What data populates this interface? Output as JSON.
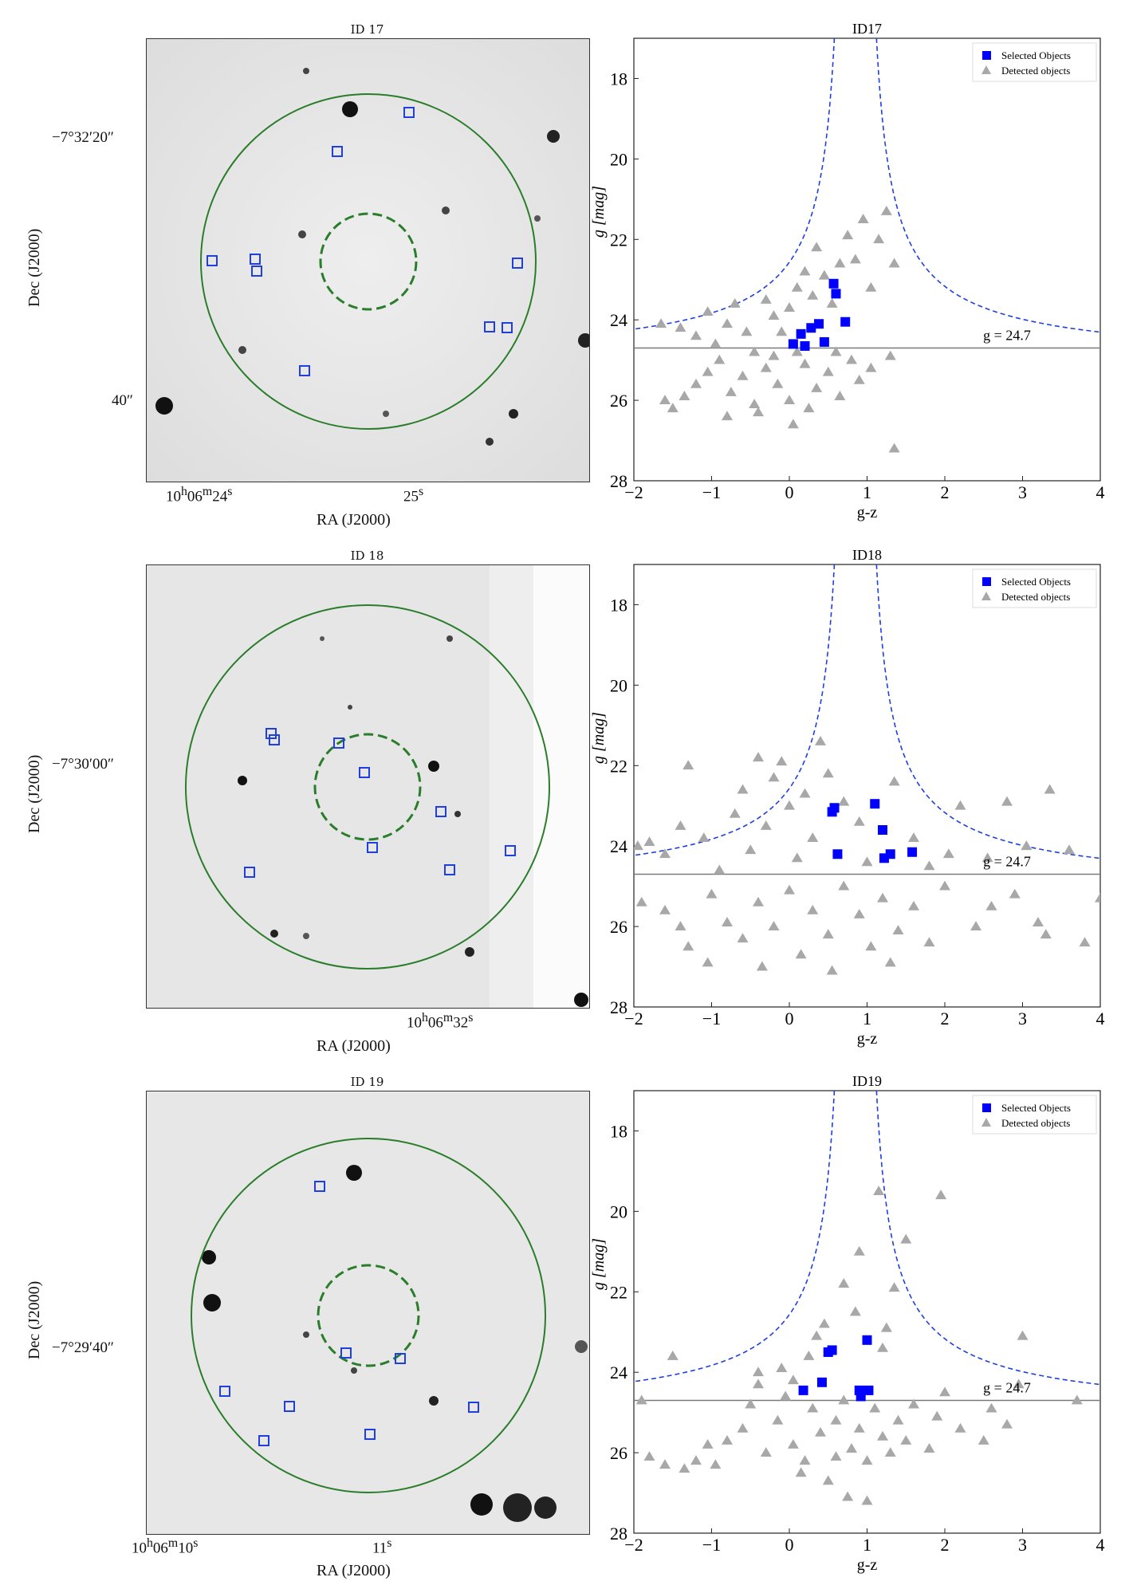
{
  "colors": {
    "circle": "#2a7d2a",
    "selected": "#0000ff",
    "detected": "#a8a8a8",
    "curve": "#1f3fe0",
    "line": "#7a7a7a"
  },
  "images": [
    {
      "title": "ID 17",
      "dec_label": "Dec (J2000)",
      "ra_label": "RA (J2000)",
      "dec_ticks": [
        "−7°32′20″",
        "40″"
      ],
      "ra_ticks": [
        "10h06m24s",
        "25s"
      ],
      "ra_ticks_html": [
        "10<sup>h</sup>06<sup>m</sup>24<sup>s</sup>",
        "25<sup>s</sup>"
      ]
    },
    {
      "title": "ID 18",
      "dec_label": "Dec (J2000)",
      "ra_label": "RA (J2000)",
      "dec_ticks": [
        "−7°30′00″"
      ],
      "ra_ticks": [
        "10h06m32s"
      ]
    },
    {
      "title": "ID 19",
      "dec_label": "Dec (J2000)",
      "ra_label": "RA (J2000)",
      "dec_ticks": [
        "−7°29′40″"
      ],
      "ra_ticks": [
        "10h06m10s",
        "11s"
      ]
    }
  ],
  "chart_data": [
    {
      "type": "scatter",
      "title": "ID17",
      "xlabel": "g-z",
      "ylabel": "g [mag]",
      "xlim": [
        -2,
        4
      ],
      "ylim": [
        28,
        17
      ],
      "xticks": [
        -2,
        -1,
        0,
        1,
        2,
        3,
        4
      ],
      "yticks": [
        18,
        20,
        22,
        24,
        26,
        28
      ],
      "legend": [
        "Selected Objects",
        "Detected objects"
      ],
      "legend_position": "top-right",
      "threshold_label": "g = 24.7",
      "threshold": 24.7,
      "selected": [
        [
          0.05,
          24.6
        ],
        [
          0.2,
          24.65
        ],
        [
          0.15,
          24.35
        ],
        [
          0.28,
          24.2
        ],
        [
          0.38,
          24.1
        ],
        [
          0.45,
          24.55
        ],
        [
          0.57,
          23.1
        ],
        [
          0.6,
          23.35
        ],
        [
          0.72,
          24.05
        ]
      ],
      "detected": [
        [
          -1.65,
          24.1
        ],
        [
          -1.4,
          24.2
        ],
        [
          -1.2,
          24.4
        ],
        [
          -1.05,
          23.8
        ],
        [
          -0.95,
          24.6
        ],
        [
          -0.8,
          24.1
        ],
        [
          -0.7,
          23.6
        ],
        [
          -0.55,
          24.3
        ],
        [
          -0.45,
          24.8
        ],
        [
          -0.3,
          23.5
        ],
        [
          -0.2,
          23.9
        ],
        [
          -0.1,
          24.3
        ],
        [
          0.0,
          23.7
        ],
        [
          0.1,
          23.2
        ],
        [
          0.2,
          22.8
        ],
        [
          0.3,
          23.4
        ],
        [
          0.35,
          22.2
        ],
        [
          0.45,
          22.9
        ],
        [
          0.55,
          23.6
        ],
        [
          0.65,
          22.6
        ],
        [
          0.75,
          21.9
        ],
        [
          0.85,
          22.5
        ],
        [
          0.95,
          21.5
        ],
        [
          1.05,
          23.2
        ],
        [
          1.15,
          22.0
        ],
        [
          1.25,
          21.3
        ],
        [
          1.35,
          22.6
        ],
        [
          -1.5,
          26.2
        ],
        [
          -1.35,
          25.9
        ],
        [
          -1.2,
          25.6
        ],
        [
          -1.05,
          25.3
        ],
        [
          -0.9,
          25.0
        ],
        [
          -0.75,
          25.8
        ],
        [
          -0.6,
          25.4
        ],
        [
          -0.45,
          26.1
        ],
        [
          -0.3,
          25.2
        ],
        [
          -0.15,
          25.6
        ],
        [
          0.0,
          26.0
        ],
        [
          0.05,
          26.6
        ],
        [
          0.2,
          25.1
        ],
        [
          0.35,
          25.7
        ],
        [
          0.5,
          25.3
        ],
        [
          0.65,
          25.9
        ],
        [
          0.8,
          25.0
        ],
        [
          0.9,
          25.5
        ],
        [
          1.05,
          25.2
        ],
        [
          1.3,
          24.9
        ],
        [
          1.35,
          27.2
        ],
        [
          -0.8,
          26.4
        ],
        [
          -0.4,
          26.3
        ],
        [
          0.25,
          26.2
        ],
        [
          -1.6,
          26.0
        ],
        [
          0.6,
          24.8
        ],
        [
          0.1,
          24.8
        ],
        [
          -0.2,
          24.9
        ]
      ]
    },
    {
      "type": "scatter",
      "title": "ID18",
      "xlabel": "g-z",
      "ylabel": "g [mag]",
      "xlim": [
        -2,
        4
      ],
      "ylim": [
        28,
        17
      ],
      "xticks": [
        -2,
        -1,
        0,
        1,
        2,
        3,
        4
      ],
      "yticks": [
        18,
        20,
        22,
        24,
        26,
        28
      ],
      "legend": [
        "Selected Objects",
        "Detected objects"
      ],
      "legend_position": "top-right",
      "threshold_label": "g = 24.7",
      "threshold": 24.7,
      "selected": [
        [
          0.55,
          23.15
        ],
        [
          0.58,
          23.05
        ],
        [
          0.62,
          24.2
        ],
        [
          1.1,
          22.95
        ],
        [
          1.2,
          23.6
        ],
        [
          1.22,
          24.3
        ],
        [
          1.3,
          24.2
        ],
        [
          1.58,
          24.15
        ]
      ],
      "detected": [
        [
          -1.95,
          24.0
        ],
        [
          -1.8,
          23.9
        ],
        [
          -1.6,
          24.2
        ],
        [
          -1.4,
          23.5
        ],
        [
          -1.3,
          22.0
        ],
        [
          -1.1,
          23.8
        ],
        [
          -0.9,
          24.6
        ],
        [
          -0.7,
          23.2
        ],
        [
          -0.6,
          22.6
        ],
        [
          -0.5,
          24.1
        ],
        [
          -0.4,
          21.8
        ],
        [
          -0.3,
          23.5
        ],
        [
          -0.2,
          22.3
        ],
        [
          -0.1,
          21.9
        ],
        [
          0.0,
          23.0
        ],
        [
          0.1,
          24.3
        ],
        [
          0.2,
          22.7
        ],
        [
          0.3,
          23.8
        ],
        [
          0.4,
          21.4
        ],
        [
          0.5,
          22.2
        ],
        [
          0.7,
          22.9
        ],
        [
          0.9,
          23.4
        ],
        [
          1.0,
          24.4
        ],
        [
          1.35,
          22.4
        ],
        [
          1.6,
          23.8
        ],
        [
          1.8,
          24.5
        ],
        [
          2.05,
          24.2
        ],
        [
          2.2,
          23.0
        ],
        [
          2.55,
          24.3
        ],
        [
          2.8,
          22.9
        ],
        [
          3.05,
          24.0
        ],
        [
          3.35,
          22.6
        ],
        [
          3.6,
          24.1
        ],
        [
          -1.9,
          25.4
        ],
        [
          -1.6,
          25.6
        ],
        [
          -1.4,
          26.0
        ],
        [
          -1.3,
          26.5
        ],
        [
          -1.0,
          25.2
        ],
        [
          -0.8,
          25.9
        ],
        [
          -0.6,
          26.3
        ],
        [
          -0.4,
          25.4
        ],
        [
          -0.2,
          26.0
        ],
        [
          0.0,
          25.1
        ],
        [
          0.15,
          26.7
        ],
        [
          0.3,
          25.6
        ],
        [
          0.5,
          26.2
        ],
        [
          0.7,
          25.0
        ],
        [
          0.9,
          25.7
        ],
        [
          1.05,
          26.5
        ],
        [
          1.2,
          25.3
        ],
        [
          1.4,
          26.1
        ],
        [
          1.6,
          25.5
        ],
        [
          1.8,
          26.4
        ],
        [
          2.0,
          25.0
        ],
        [
          2.4,
          26.0
        ],
        [
          2.6,
          25.5
        ],
        [
          2.9,
          25.2
        ],
        [
          3.2,
          25.9
        ],
        [
          3.3,
          26.2
        ],
        [
          3.8,
          26.4
        ],
        [
          4.0,
          25.3
        ],
        [
          -1.05,
          26.9
        ],
        [
          -0.35,
          27.0
        ],
        [
          0.55,
          27.1
        ],
        [
          1.3,
          26.9
        ]
      ]
    },
    {
      "type": "scatter",
      "title": "ID19",
      "xlabel": "g-z",
      "ylabel": "g [mag]",
      "xlim": [
        -2,
        4
      ],
      "ylim": [
        28,
        17
      ],
      "xticks": [
        -2,
        -1,
        0,
        1,
        2,
        3,
        4
      ],
      "yticks": [
        18,
        20,
        22,
        24,
        26,
        28
      ],
      "legend": [
        "Selected Objects",
        "Detected objects"
      ],
      "legend_position": "top-right",
      "threshold_label": "g = 24.7",
      "threshold": 24.7,
      "selected": [
        [
          0.18,
          24.45
        ],
        [
          0.42,
          24.25
        ],
        [
          0.5,
          23.5
        ],
        [
          0.55,
          23.45
        ],
        [
          0.9,
          24.45
        ],
        [
          0.92,
          24.6
        ],
        [
          1.0,
          23.2
        ],
        [
          1.02,
          24.45
        ]
      ],
      "detected": [
        [
          -1.9,
          24.7
        ],
        [
          -1.8,
          26.1
        ],
        [
          -1.6,
          26.3
        ],
        [
          -1.5,
          23.6
        ],
        [
          -1.35,
          26.4
        ],
        [
          -1.2,
          26.2
        ],
        [
          -1.05,
          25.8
        ],
        [
          -0.95,
          26.3
        ],
        [
          -0.8,
          25.7
        ],
        [
          -0.6,
          25.4
        ],
        [
          -0.5,
          24.8
        ],
        [
          -0.4,
          24.3
        ],
        [
          -0.3,
          26.0
        ],
        [
          -0.15,
          25.2
        ],
        [
          -0.05,
          24.6
        ],
        [
          0.05,
          25.8
        ],
        [
          0.2,
          26.2
        ],
        [
          0.3,
          24.9
        ],
        [
          0.4,
          25.5
        ],
        [
          0.5,
          26.7
        ],
        [
          0.6,
          25.2
        ],
        [
          0.7,
          24.7
        ],
        [
          0.8,
          25.9
        ],
        [
          0.9,
          25.4
        ],
        [
          1.0,
          26.2
        ],
        [
          1.1,
          24.9
        ],
        [
          1.2,
          25.6
        ],
        [
          1.3,
          26.0
        ],
        [
          1.4,
          25.2
        ],
        [
          1.5,
          25.7
        ],
        [
          1.6,
          24.8
        ],
        [
          1.8,
          25.9
        ],
        [
          1.9,
          25.1
        ],
        [
          2.0,
          24.5
        ],
        [
          2.2,
          25.4
        ],
        [
          2.5,
          25.7
        ],
        [
          2.6,
          24.9
        ],
        [
          2.8,
          25.3
        ],
        [
          2.95,
          24.3
        ],
        [
          3.0,
          23.1
        ],
        [
          3.7,
          24.7
        ],
        [
          0.45,
          22.8
        ],
        [
          0.7,
          21.8
        ],
        [
          0.9,
          21.0
        ],
        [
          1.15,
          19.5
        ],
        [
          1.35,
          21.9
        ],
        [
          1.5,
          20.7
        ],
        [
          1.95,
          19.6
        ],
        [
          0.6,
          26.1
        ],
        [
          0.75,
          27.1
        ],
        [
          1.0,
          27.2
        ],
        [
          0.15,
          26.5
        ],
        [
          -0.1,
          23.9
        ],
        [
          0.05,
          24.2
        ],
        [
          0.25,
          23.6
        ],
        [
          0.35,
          23.1
        ],
        [
          0.85,
          22.5
        ],
        [
          1.2,
          23.4
        ],
        [
          1.25,
          22.9
        ],
        [
          -0.4,
          24.0
        ]
      ]
    }
  ]
}
